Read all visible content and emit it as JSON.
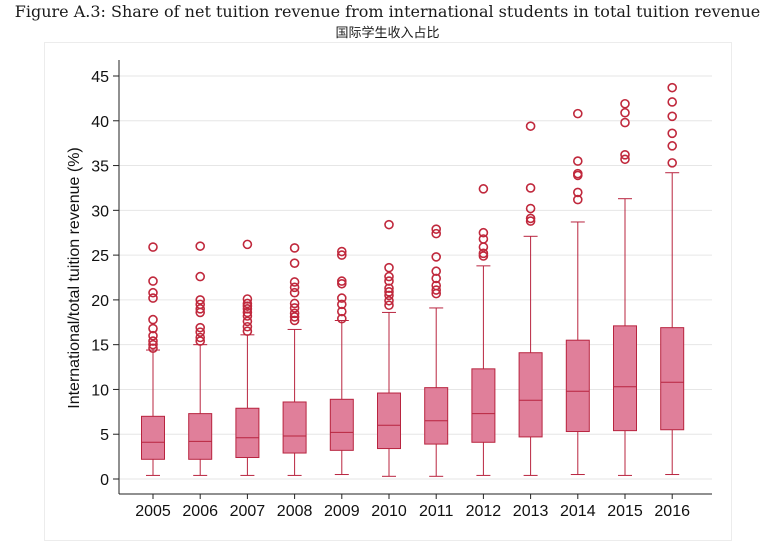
{
  "title": "Figure A.3:  Share of net tuition revenue from international students in total tuition revenue",
  "subtitle": "国际学生收入占比",
  "colors": {
    "box_fill": "#e07f9a",
    "box_stroke": "#b8243f",
    "outlier": "#c0283c",
    "grid": "#e6e6e6",
    "axis": "#222222"
  },
  "chart_data": {
    "type": "boxplot",
    "title": "Share of net tuition revenue from international students in total tuition revenue",
    "xlabel": "",
    "ylabel": "International/total tuition revenue (%)",
    "ylim": [
      -2,
      47
    ],
    "yticks": [
      0,
      5,
      10,
      15,
      20,
      25,
      30,
      35,
      40,
      45
    ],
    "ytick_labels": [
      "0",
      "5",
      "10",
      "15",
      "20",
      "25",
      "30",
      "35",
      "40",
      "45"
    ],
    "grid": true,
    "categories": [
      "2005",
      "2006",
      "2007",
      "2008",
      "2009",
      "2010",
      "2011",
      "2012",
      "2013",
      "2014",
      "2015",
      "2016"
    ],
    "boxes": [
      {
        "year": "2005",
        "whisker_low": 0.4,
        "q1": 2.2,
        "median": 4.1,
        "q3": 7.0,
        "whisker_high": 14.4,
        "outliers": [
          14.6,
          15.0,
          15.4,
          16.0,
          16.8,
          17.8,
          20.2,
          20.8,
          22.1,
          25.9
        ]
      },
      {
        "year": "2006",
        "whisker_low": 0.4,
        "q1": 2.2,
        "median": 4.2,
        "q3": 7.3,
        "whisker_high": 15.0,
        "outliers": [
          15.4,
          15.8,
          16.4,
          16.9,
          18.6,
          19.0,
          19.5,
          20.0,
          22.6,
          26.0
        ]
      },
      {
        "year": "2007",
        "whisker_low": 0.4,
        "q1": 2.4,
        "median": 4.6,
        "q3": 7.9,
        "whisker_high": 16.1,
        "outliers": [
          16.5,
          17.0,
          17.6,
          18.2,
          18.6,
          19.0,
          19.3,
          19.6,
          20.1,
          26.2
        ]
      },
      {
        "year": "2008",
        "whisker_low": 0.4,
        "q1": 2.9,
        "median": 4.8,
        "q3": 8.6,
        "whisker_high": 16.7,
        "outliers": [
          17.7,
          18.1,
          18.5,
          19.1,
          19.6,
          20.8,
          21.4,
          22.0,
          24.1,
          25.8
        ]
      },
      {
        "year": "2009",
        "whisker_low": 0.5,
        "q1": 3.2,
        "median": 5.2,
        "q3": 8.9,
        "whisker_high": 17.7,
        "outliers": [
          17.9,
          18.7,
          19.5,
          20.2,
          21.8,
          22.1,
          25.0,
          25.4
        ]
      },
      {
        "year": "2010",
        "whisker_low": 0.3,
        "q1": 3.4,
        "median": 6.0,
        "q3": 9.6,
        "whisker_high": 18.6,
        "outliers": [
          19.4,
          19.9,
          20.5,
          20.9,
          21.3,
          22.1,
          22.6,
          23.6,
          28.4
        ]
      },
      {
        "year": "2011",
        "whisker_low": 0.3,
        "q1": 3.9,
        "median": 6.5,
        "q3": 10.2,
        "whisker_high": 19.1,
        "outliers": [
          20.7,
          21.1,
          21.6,
          22.4,
          23.2,
          24.8,
          27.4,
          27.9
        ]
      },
      {
        "year": "2012",
        "whisker_low": 0.4,
        "q1": 4.1,
        "median": 7.3,
        "q3": 12.3,
        "whisker_high": 23.8,
        "outliers": [
          24.9,
          25.2,
          25.9,
          26.8,
          27.5,
          32.4
        ]
      },
      {
        "year": "2013",
        "whisker_low": 0.4,
        "q1": 4.7,
        "median": 8.8,
        "q3": 14.1,
        "whisker_high": 27.1,
        "outliers": [
          28.8,
          29.1,
          30.2,
          32.5,
          39.4
        ]
      },
      {
        "year": "2014",
        "whisker_low": 0.5,
        "q1": 5.3,
        "median": 9.8,
        "q3": 15.5,
        "whisker_high": 28.7,
        "outliers": [
          31.2,
          32.0,
          33.9,
          34.1,
          35.5,
          40.8
        ]
      },
      {
        "year": "2015",
        "whisker_low": 0.4,
        "q1": 5.4,
        "median": 10.3,
        "q3": 17.1,
        "whisker_high": 31.3,
        "outliers": [
          35.7,
          36.2,
          39.8,
          40.9,
          41.9
        ]
      },
      {
        "year": "2016",
        "whisker_low": 0.5,
        "q1": 5.5,
        "median": 10.8,
        "q3": 16.9,
        "whisker_high": 34.2,
        "outliers": [
          35.3,
          37.2,
          38.6,
          40.5,
          42.1,
          43.7
        ]
      }
    ]
  }
}
